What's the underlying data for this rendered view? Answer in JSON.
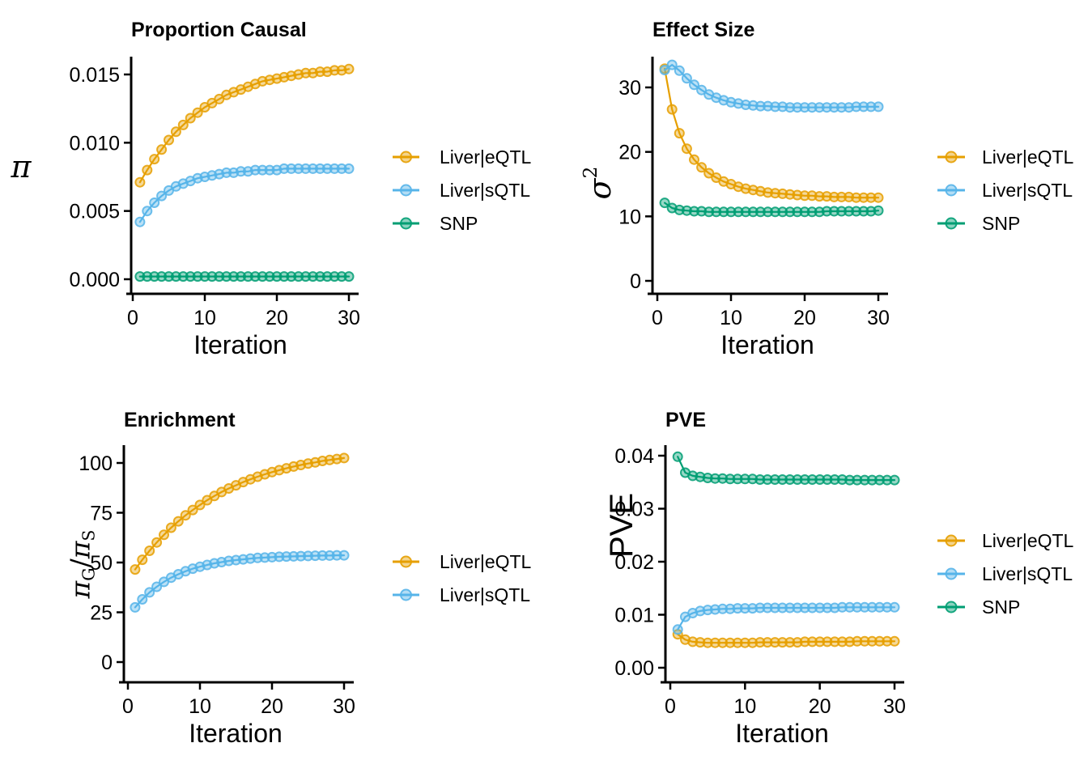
{
  "figure": {
    "background": "#FFFFFF",
    "axis_color": "#000000",
    "text_color": "#000000",
    "palette": {
      "Liver|eQTL": "#E69F00",
      "Liver|sQTL": "#56B4E9",
      "SNP": "#009E73"
    }
  },
  "iterations": [
    1,
    2,
    3,
    4,
    5,
    6,
    7,
    8,
    9,
    10,
    11,
    12,
    13,
    14,
    15,
    16,
    17,
    18,
    19,
    20,
    21,
    22,
    23,
    24,
    25,
    26,
    27,
    28,
    29,
    30
  ],
  "chart_data": [
    {
      "id": "proportion-causal",
      "type": "line",
      "title": "Proportion Causal",
      "xlabel": "Iteration",
      "ylabel": "π",
      "ylabel_parts": [
        {
          "t": "π",
          "it": true
        }
      ],
      "xlim": [
        0,
        30
      ],
      "ylim": [
        0,
        0.0158
      ],
      "grid": false,
      "legend_position": "right",
      "xticks": {
        "values": [
          0,
          10,
          20,
          30
        ],
        "labels": [
          "0",
          "10",
          "20",
          "30"
        ]
      },
      "yticks": {
        "values": [
          0,
          0.005,
          0.01,
          0.015
        ],
        "labels": [
          "0.000",
          "0.005",
          "0.010",
          "0.015"
        ]
      },
      "series": [
        {
          "name": "Liver|eQTL",
          "color": "#E69F00",
          "values": [
            0.0071,
            0.008,
            0.0088,
            0.0095,
            0.0102,
            0.0108,
            0.0113,
            0.0118,
            0.0122,
            0.0126,
            0.0129,
            0.0132,
            0.0135,
            0.0137,
            0.0139,
            0.0141,
            0.0143,
            0.0145,
            0.0146,
            0.0147,
            0.0148,
            0.0149,
            0.015,
            0.0151,
            0.0151,
            0.0152,
            0.0152,
            0.0153,
            0.0153,
            0.0154
          ]
        },
        {
          "name": "Liver|sQTL",
          "color": "#56B4E9",
          "values": [
            0.0042,
            0.005,
            0.0056,
            0.0061,
            0.0065,
            0.0068,
            0.007,
            0.0072,
            0.0074,
            0.0075,
            0.0076,
            0.0077,
            0.0078,
            0.0078,
            0.0079,
            0.0079,
            0.008,
            0.008,
            0.008,
            0.008,
            0.0081,
            0.0081,
            0.0081,
            0.0081,
            0.0081,
            0.0081,
            0.0081,
            0.0081,
            0.0081,
            0.0081
          ]
        },
        {
          "name": "SNP",
          "color": "#009E73",
          "values": [
            0.0002,
            0.0002,
            0.0002,
            0.0002,
            0.0002,
            0.0002,
            0.0002,
            0.0002,
            0.0002,
            0.0002,
            0.0002,
            0.0002,
            0.0002,
            0.0002,
            0.0002,
            0.0002,
            0.0002,
            0.0002,
            0.0002,
            0.0002,
            0.0002,
            0.0002,
            0.0002,
            0.0002,
            0.0002,
            0.0002,
            0.0002,
            0.0002,
            0.0002,
            0.0002
          ]
        }
      ]
    },
    {
      "id": "effect-size",
      "type": "line",
      "title": "Effect Size",
      "xlabel": "Iteration",
      "ylabel": "σ2",
      "ylabel_parts": [
        {
          "t": "σ",
          "it": true
        },
        {
          "t": "2",
          "pos": "sup"
        }
      ],
      "xlim": [
        0,
        30
      ],
      "ylim": [
        0,
        34.5
      ],
      "grid": false,
      "legend_position": "right",
      "xticks": {
        "values": [
          0,
          10,
          20,
          30
        ],
        "labels": [
          "0",
          "10",
          "20",
          "30"
        ]
      },
      "yticks": {
        "values": [
          0,
          10,
          20,
          30
        ],
        "labels": [
          "0",
          "10",
          "20",
          "30"
        ]
      },
      "series": [
        {
          "name": "Liver|eQTL",
          "color": "#E69F00",
          "values": [
            32.9,
            26.6,
            22.9,
            20.5,
            18.8,
            17.6,
            16.7,
            16.0,
            15.4,
            15.0,
            14.6,
            14.3,
            14.1,
            13.9,
            13.7,
            13.6,
            13.5,
            13.4,
            13.3,
            13.2,
            13.2,
            13.1,
            13.1,
            13.0,
            13.0,
            13.0,
            12.9,
            12.9,
            12.9,
            12.9
          ]
        },
        {
          "name": "Liver|sQTL",
          "color": "#56B4E9",
          "values": [
            32.7,
            33.5,
            32.6,
            31.4,
            30.4,
            29.6,
            28.9,
            28.4,
            28.0,
            27.7,
            27.5,
            27.3,
            27.2,
            27.1,
            27.1,
            27.0,
            27.0,
            26.9,
            26.9,
            26.9,
            26.9,
            26.9,
            26.9,
            26.9,
            26.9,
            26.9,
            27.0,
            27.0,
            27.0,
            27.0
          ]
        },
        {
          "name": "SNP",
          "color": "#009E73",
          "values": [
            12.1,
            11.3,
            11.0,
            10.9,
            10.8,
            10.8,
            10.7,
            10.7,
            10.7,
            10.7,
            10.7,
            10.7,
            10.7,
            10.7,
            10.7,
            10.7,
            10.7,
            10.7,
            10.7,
            10.7,
            10.7,
            10.7,
            10.8,
            10.8,
            10.8,
            10.8,
            10.8,
            10.8,
            10.8,
            10.9
          ]
        }
      ]
    },
    {
      "id": "enrichment",
      "type": "line",
      "title": "Enrichment",
      "xlabel": "Iteration",
      "ylabel": "πG/πS",
      "ylabel_parts": [
        {
          "t": "π",
          "it": true
        },
        {
          "t": "G",
          "pos": "sub"
        },
        {
          "t": "/"
        },
        {
          "t": "π",
          "it": true
        },
        {
          "t": "S",
          "pos": "sub"
        }
      ],
      "xlim": [
        0,
        30
      ],
      "ylim": [
        0,
        105
      ],
      "grid": false,
      "legend_position": "right",
      "xticks": {
        "values": [
          0,
          10,
          20,
          30
        ],
        "labels": [
          "0",
          "10",
          "20",
          "30"
        ]
      },
      "yticks": {
        "values": [
          0,
          25,
          50,
          75,
          100
        ],
        "labels": [
          "0",
          "25",
          "50",
          "75",
          "100"
        ]
      },
      "series": [
        {
          "name": "Liver|eQTL",
          "color": "#E69F00",
          "values": [
            46.5,
            51.4,
            55.9,
            60.1,
            63.9,
            67.5,
            70.7,
            73.7,
            76.4,
            78.9,
            81.3,
            83.4,
            85.4,
            87.2,
            88.8,
            90.4,
            91.8,
            93.1,
            94.3,
            95.4,
            96.4,
            97.3,
            98.2,
            99.0,
            99.7,
            100.3,
            101.0,
            101.5,
            102.0,
            102.5
          ]
        },
        {
          "name": "Liver|sQTL",
          "color": "#56B4E9",
          "values": [
            27.5,
            31.5,
            35.0,
            37.8,
            40.3,
            42.4,
            44.1,
            45.6,
            46.9,
            47.9,
            48.8,
            49.6,
            50.2,
            50.8,
            51.2,
            51.6,
            52.0,
            52.3,
            52.5,
            52.7,
            52.9,
            53.0,
            53.1,
            53.2,
            53.3,
            53.4,
            53.5,
            53.5,
            53.6,
            53.6
          ]
        }
      ]
    },
    {
      "id": "pve",
      "type": "line",
      "title": "PVE",
      "xlabel": "Iteration",
      "ylabel": "PVE",
      "ylabel_parts": [
        {
          "t": "PVE"
        }
      ],
      "xlim": [
        0,
        30
      ],
      "ylim": [
        0,
        0.041
      ],
      "grid": false,
      "legend_position": "right",
      "xticks": {
        "values": [
          0,
          10,
          20,
          30
        ],
        "labels": [
          "0",
          "10",
          "20",
          "30"
        ]
      },
      "yticks": {
        "values": [
          0,
          0.01,
          0.02,
          0.03,
          0.04
        ],
        "labels": [
          "0.00",
          "0.01",
          "0.02",
          "0.03",
          "0.04"
        ]
      },
      "series": [
        {
          "name": "Liver|eQTL",
          "color": "#E69F00",
          "values": [
            0.0063,
            0.0053,
            0.0049,
            0.0048,
            0.0047,
            0.0047,
            0.0047,
            0.0047,
            0.0047,
            0.0047,
            0.0047,
            0.0048,
            0.0048,
            0.0048,
            0.0048,
            0.0048,
            0.0048,
            0.0049,
            0.0049,
            0.0049,
            0.0049,
            0.0049,
            0.0049,
            0.0049,
            0.005,
            0.005,
            0.005,
            0.005,
            0.005,
            0.005
          ]
        },
        {
          "name": "Liver|sQTL",
          "color": "#56B4E9",
          "values": [
            0.0072,
            0.0096,
            0.0103,
            0.0107,
            0.0109,
            0.011,
            0.0111,
            0.0111,
            0.0112,
            0.0112,
            0.0112,
            0.0113,
            0.0113,
            0.0113,
            0.0113,
            0.0113,
            0.0113,
            0.0113,
            0.0113,
            0.0113,
            0.0113,
            0.0113,
            0.0114,
            0.0114,
            0.0114,
            0.0114,
            0.0114,
            0.0114,
            0.0114,
            0.0114
          ]
        },
        {
          "name": "SNP",
          "color": "#009E73",
          "values": [
            0.0398,
            0.0368,
            0.0362,
            0.036,
            0.0358,
            0.0357,
            0.0357,
            0.0356,
            0.0356,
            0.0356,
            0.0356,
            0.0355,
            0.0355,
            0.0355,
            0.0355,
            0.0355,
            0.0355,
            0.0355,
            0.0355,
            0.0355,
            0.0355,
            0.0355,
            0.0355,
            0.0354,
            0.0354,
            0.0354,
            0.0354,
            0.0354,
            0.0354,
            0.0354
          ]
        }
      ]
    }
  ]
}
